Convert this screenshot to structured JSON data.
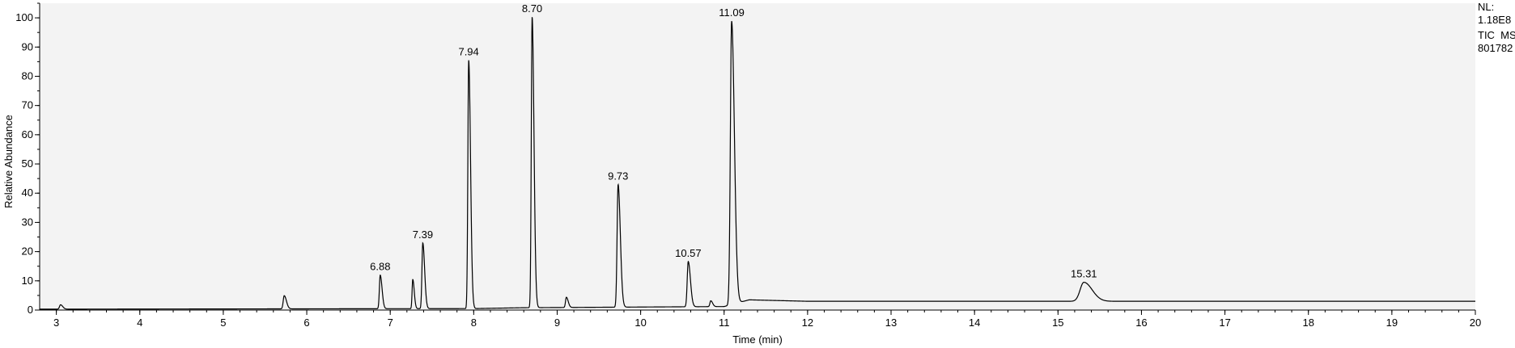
{
  "colors": {
    "plot_bg": "#f3f3f3",
    "axis": "#000000",
    "trace": "#000000",
    "page_bg": "#ffffff"
  },
  "chart_data": {
    "type": "line",
    "title": "",
    "xlabel": "Time (min)",
    "ylabel": "Relative Abundance",
    "xlim": [
      2.8,
      20
    ],
    "ylim": [
      0,
      105
    ],
    "grid": false,
    "x_ticks": [
      3,
      4,
      5,
      6,
      7,
      8,
      9,
      10,
      11,
      12,
      13,
      14,
      15,
      16,
      17,
      18,
      19,
      20
    ],
    "y_ticks": [
      0,
      10,
      20,
      30,
      40,
      50,
      60,
      70,
      80,
      90,
      100
    ],
    "info": [
      "NL:",
      "1.18E8",
      "TIC  MS",
      "801782"
    ],
    "baseline": [
      {
        "x": 2.8,
        "y": 0.3
      },
      {
        "x": 8.0,
        "y": 0.5
      },
      {
        "x": 8.6,
        "y": 0.8
      },
      {
        "x": 11.0,
        "y": 1.2
      },
      {
        "x": 11.3,
        "y": 3.5
      },
      {
        "x": 12.0,
        "y": 3.0
      },
      {
        "x": 15.0,
        "y": 3.0
      },
      {
        "x": 20.0,
        "y": 3.0
      }
    ],
    "peaks": [
      {
        "rt": 3.05,
        "height": 1.5,
        "width": 0.012,
        "label": null
      },
      {
        "rt": 5.73,
        "height": 4.5,
        "width": 0.012,
        "label": null
      },
      {
        "rt": 6.88,
        "height": 11.5,
        "width": 0.01,
        "label": "6.88"
      },
      {
        "rt": 7.27,
        "height": 10,
        "width": 0.008,
        "label": null
      },
      {
        "rt": 7.39,
        "height": 22.5,
        "width": 0.01,
        "label": "7.39"
      },
      {
        "rt": 7.94,
        "height": 85,
        "width": 0.01,
        "label": "7.94"
      },
      {
        "rt": 8.7,
        "height": 99.5,
        "width": 0.01,
        "label": "8.70"
      },
      {
        "rt": 9.11,
        "height": 3.5,
        "width": 0.01,
        "label": null
      },
      {
        "rt": 9.73,
        "height": 42,
        "width": 0.012,
        "label": "9.73"
      },
      {
        "rt": 10.57,
        "height": 15.5,
        "width": 0.012,
        "label": "10.57"
      },
      {
        "rt": 10.84,
        "height": 2,
        "width": 0.01,
        "label": null
      },
      {
        "rt": 11.09,
        "height": 97,
        "width": 0.015,
        "label": "11.09"
      },
      {
        "rt": 15.31,
        "height": 6.5,
        "width": 0.045,
        "label": "15.31"
      }
    ]
  }
}
